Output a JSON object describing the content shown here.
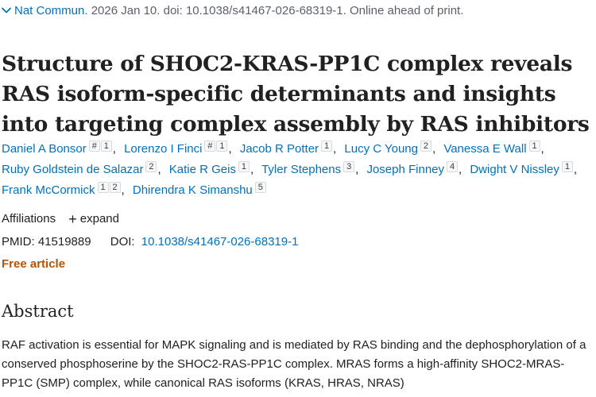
{
  "citation": {
    "journal": "Nat Commun.",
    "rest": " 2026 Jan 10. doi: 10.1038/s41467-026-68319-1. Online ahead of print."
  },
  "title": "Structure of SHOC2-KRAS-PP1C complex reveals RAS isoform-specific determinants and insights into targeting complex assembly by RAS inhibitors",
  "authors": [
    {
      "name": "Daniel A Bonsor",
      "sups": [
        "#",
        "1"
      ]
    },
    {
      "name": "Lorenzo I Finci",
      "sups": [
        "#",
        "1"
      ]
    },
    {
      "name": "Jacob R Potter",
      "sups": [
        "1"
      ]
    },
    {
      "name": "Lucy C Young",
      "sups": [
        "2"
      ]
    },
    {
      "name": "Vanessa E Wall",
      "sups": [
        "1"
      ]
    },
    {
      "name": "Ruby Goldstein de Salazar",
      "sups": [
        "2"
      ]
    },
    {
      "name": "Katie R Geis",
      "sups": [
        "1"
      ]
    },
    {
      "name": "Tyler Stephens",
      "sups": [
        "3"
      ]
    },
    {
      "name": "Joseph Finney",
      "sups": [
        "4"
      ]
    },
    {
      "name": "Dwight V Nissley",
      "sups": [
        "1"
      ]
    },
    {
      "name": "Frank McCormick",
      "sups": [
        "1",
        "2"
      ]
    },
    {
      "name": "Dhirendra K Simanshu",
      "sups": [
        "5"
      ]
    }
  ],
  "affiliations": {
    "label": "Affiliations",
    "expand_label": "expand"
  },
  "ids": {
    "pmid_label": "PMID:",
    "pmid": "41519889",
    "doi_label": "DOI:",
    "doi": "10.1038/s41467-026-68319-1"
  },
  "free_article": "Free article",
  "abstract": {
    "heading": "Abstract",
    "text": "RAF activation is essential for MAPK signaling and is mediated by RAS binding and the dephosphorylation of a conserved phosphoserine by the SHOC2-RAS-PP1C complex. MRAS forms a high-affinity SHOC2-MRAS-PP1C (SMP) complex, while canonical RAS isoforms (KRAS, HRAS, NRAS)"
  },
  "icons": {
    "citation_toggle": "chevron-down-icon",
    "affiliations_expand": "plus-icon"
  },
  "colors": {
    "link": "#0071bc",
    "free_article": "#b45309",
    "text": "#212121",
    "muted": "#5b616b"
  }
}
